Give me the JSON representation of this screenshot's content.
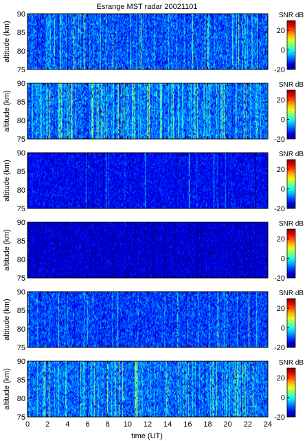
{
  "chart_data": {
    "type": "heatmap",
    "title": "Esrange MST radar 20021101",
    "xlabel": "time (UT)",
    "xlim": [
      0,
      24
    ],
    "xticks": [
      "0",
      "2",
      "4",
      "6",
      "8",
      "10",
      "12",
      "14",
      "16",
      "18",
      "20",
      "22",
      "24"
    ],
    "colormap": "jet",
    "panels": [
      {
        "ylabel": "altitude (km)",
        "ylim": [
          75,
          90
        ],
        "yticks": [
          "75",
          "80",
          "85",
          "90"
        ],
        "colorbar": {
          "label": "SNR dB",
          "range": [
            -20,
            30
          ],
          "ticks": [
            "-20",
            "0",
            "20"
          ]
        },
        "typical_snr_db": -10,
        "noise_db": 4,
        "echo_activity": 0.18
      },
      {
        "ylabel": "altitude (km)",
        "ylim": [
          75,
          90
        ],
        "yticks": [
          "75",
          "80",
          "85",
          "90"
        ],
        "colorbar": {
          "label": "SNR dB",
          "range": [
            -20,
            30
          ],
          "ticks": [
            "-20",
            "0",
            "20"
          ]
        },
        "typical_snr_db": -9,
        "noise_db": 4,
        "echo_activity": 0.28
      },
      {
        "ylabel": "altitude (km)",
        "ylim": [
          75,
          90
        ],
        "yticks": [
          "75",
          "80",
          "85",
          "90"
        ],
        "colorbar": {
          "label": "SNR dB",
          "range": [
            -20,
            30
          ],
          "ticks": [
            "-20",
            "0",
            "20"
          ]
        },
        "typical_snr_db": -14,
        "noise_db": 2.5,
        "echo_activity": 0.03
      },
      {
        "ylabel": "altitude (km)",
        "ylim": [
          75,
          90
        ],
        "yticks": [
          "75",
          "80",
          "85",
          "90"
        ],
        "colorbar": {
          "label": "SNR dB",
          "range": [
            -20,
            30
          ],
          "ticks": [
            "-20",
            "0",
            "20"
          ]
        },
        "typical_snr_db": -16,
        "noise_db": 2.2,
        "echo_activity": 0.0
      },
      {
        "ylabel": "altitude (km)",
        "ylim": [
          75,
          90
        ],
        "yticks": [
          "75",
          "80",
          "85",
          "90"
        ],
        "colorbar": {
          "label": "SNR dB",
          "range": [
            -20,
            30
          ],
          "ticks": [
            "-20",
            "0",
            "20"
          ]
        },
        "typical_snr_db": -11,
        "noise_db": 3.5,
        "echo_activity": 0.1
      },
      {
        "ylabel": "altitude (km)",
        "ylim": [
          75,
          90
        ],
        "yticks": [
          "75",
          "80",
          "85",
          "90"
        ],
        "colorbar": {
          "label": "SNR dB",
          "range": [
            -20,
            30
          ],
          "ticks": [
            "-20",
            "0",
            "20"
          ]
        },
        "typical_snr_db": -9,
        "noise_db": 4,
        "echo_activity": 0.25
      }
    ]
  }
}
